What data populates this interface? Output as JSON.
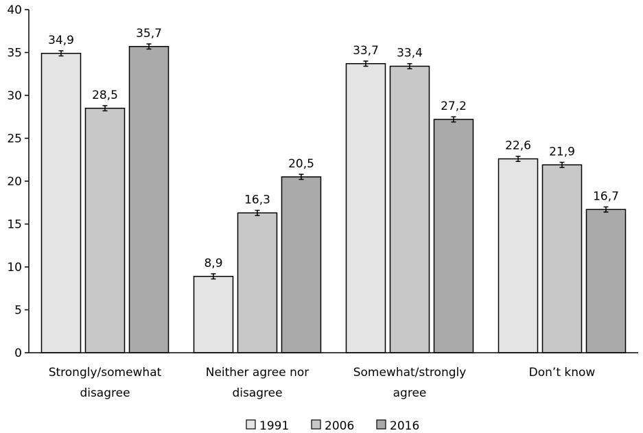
{
  "chart_data": {
    "type": "bar",
    "title": "",
    "xlabel": "",
    "ylabel": "",
    "ylim": [
      0,
      40
    ],
    "yticks": [
      "0",
      "5",
      "10",
      "15",
      "20",
      "25",
      "30",
      "35",
      "40"
    ],
    "grid": false,
    "legend_position": "bottom",
    "categories": [
      [
        "Strongly/somewhat",
        "disagree"
      ],
      [
        "Neither agree nor",
        "disagree"
      ],
      [
        "Somewhat/strongly",
        "agree"
      ],
      [
        "Don’t know"
      ]
    ],
    "series": [
      {
        "name": "1991",
        "color": "#e4e4e4",
        "values": [
          34.9,
          8.9,
          33.7,
          22.6
        ],
        "labels": [
          "34,9",
          "8,9",
          "33,7",
          "22,6"
        ],
        "error": [
          0.3,
          0.3,
          0.3,
          0.3
        ]
      },
      {
        "name": "2006",
        "color": "#c8c8c8",
        "values": [
          28.5,
          16.3,
          33.4,
          21.9
        ],
        "labels": [
          "28,5",
          "16,3",
          "33,4",
          "21,9"
        ],
        "error": [
          0.3,
          0.3,
          0.3,
          0.3
        ]
      },
      {
        "name": "2016",
        "color": "#aaaaaa",
        "values": [
          35.7,
          20.5,
          27.2,
          16.7
        ],
        "labels": [
          "35,7",
          "20,5",
          "27,2",
          "16,7"
        ],
        "error": [
          0.3,
          0.3,
          0.3,
          0.3
        ]
      }
    ]
  }
}
